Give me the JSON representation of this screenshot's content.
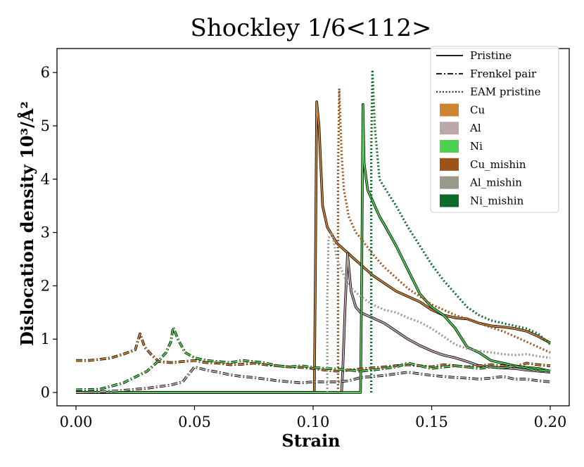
{
  "chart_data": {
    "type": "line",
    "title": "Shockley  1/6<112>",
    "xlabel": "Strain",
    "ylabel": "Dislocation density 10³/Å²",
    "xlim": [
      -0.008,
      0.208
    ],
    "ylim": [
      -0.25,
      6.45
    ],
    "xticks": [
      0.0,
      0.05,
      0.1,
      0.15,
      0.2
    ],
    "xtick_labels": [
      "0.00",
      "0.05",
      "0.10",
      "0.15",
      "0.20"
    ],
    "yticks": [
      0,
      1,
      2,
      3,
      4,
      5,
      6
    ],
    "ytick_labels": [
      "0",
      "1",
      "2",
      "3",
      "4",
      "5",
      "6"
    ],
    "legend_position": "top-right",
    "legend": [
      {
        "label": "Pristine",
        "kind": "line",
        "dash": "solid"
      },
      {
        "label": "Frenkel pair",
        "kind": "line",
        "dash": "dashdot"
      },
      {
        "label": "EAM pristine",
        "kind": "line",
        "dash": "dotted"
      },
      {
        "label": "Cu",
        "kind": "patch",
        "color": "#CD8534"
      },
      {
        "label": "Al",
        "kind": "patch",
        "color": "#BCA8AA"
      },
      {
        "label": "Ni",
        "kind": "patch",
        "color": "#4ED14E"
      },
      {
        "label": "Cu_mishin",
        "kind": "patch",
        "color": "#9B531A"
      },
      {
        "label": "Al_mishin",
        "kind": "patch",
        "color": "#9A9A8A"
      },
      {
        "label": "Ni_mishin",
        "kind": "patch",
        "color": "#0D6A28"
      }
    ],
    "series": [
      {
        "name": "Cu Pristine",
        "color": "#CD8534",
        "dash": "solid",
        "outline": true,
        "points": [
          [
            0,
            0
          ],
          [
            0.1,
            0
          ],
          [
            0.1005,
            0
          ],
          [
            0.101,
            2.5
          ],
          [
            0.1015,
            5.45
          ],
          [
            0.1025,
            5.0
          ],
          [
            0.104,
            3.5
          ],
          [
            0.106,
            3.1
          ],
          [
            0.108,
            2.95
          ],
          [
            0.11,
            2.8
          ],
          [
            0.115,
            2.6
          ],
          [
            0.12,
            2.4
          ],
          [
            0.125,
            2.2
          ],
          [
            0.13,
            2.05
          ],
          [
            0.135,
            1.9
          ],
          [
            0.14,
            1.8
          ],
          [
            0.145,
            1.7
          ],
          [
            0.15,
            1.55
          ],
          [
            0.155,
            1.45
          ],
          [
            0.16,
            1.4
          ],
          [
            0.165,
            1.38
          ],
          [
            0.17,
            1.3
          ],
          [
            0.175,
            1.25
          ],
          [
            0.18,
            1.23
          ],
          [
            0.185,
            1.2
          ],
          [
            0.19,
            1.15
          ],
          [
            0.195,
            1.05
          ],
          [
            0.2,
            0.93
          ]
        ]
      },
      {
        "name": "Al Pristine",
        "color": "#BCA8AA",
        "dash": "solid",
        "outline": true,
        "points": [
          [
            0,
            0
          ],
          [
            0.112,
            0
          ],
          [
            0.1125,
            0.4
          ],
          [
            0.1135,
            1.6
          ],
          [
            0.1145,
            2.6
          ],
          [
            0.116,
            1.9
          ],
          [
            0.118,
            1.6
          ],
          [
            0.12,
            1.5
          ],
          [
            0.125,
            1.4
          ],
          [
            0.13,
            1.3
          ],
          [
            0.135,
            1.15
          ],
          [
            0.14,
            1.0
          ],
          [
            0.145,
            0.88
          ],
          [
            0.15,
            0.78
          ],
          [
            0.155,
            0.7
          ],
          [
            0.16,
            0.65
          ],
          [
            0.165,
            0.58
          ],
          [
            0.17,
            0.5
          ],
          [
            0.175,
            0.48
          ],
          [
            0.18,
            0.46
          ],
          [
            0.185,
            0.45
          ],
          [
            0.19,
            0.42
          ],
          [
            0.195,
            0.4
          ],
          [
            0.2,
            0.38
          ]
        ]
      },
      {
        "name": "Ni Pristine",
        "color": "#4ED14E",
        "dash": "solid",
        "outline": true,
        "points": [
          [
            0,
            0
          ],
          [
            0.12,
            0
          ],
          [
            0.1205,
            2.2
          ],
          [
            0.121,
            5.4
          ],
          [
            0.1215,
            4.3
          ],
          [
            0.123,
            3.8
          ],
          [
            0.125,
            3.6
          ],
          [
            0.128,
            3.3
          ],
          [
            0.13,
            3.15
          ],
          [
            0.135,
            2.75
          ],
          [
            0.14,
            2.3
          ],
          [
            0.145,
            1.85
          ],
          [
            0.15,
            1.6
          ],
          [
            0.155,
            1.45
          ],
          [
            0.16,
            1.2
          ],
          [
            0.165,
            0.85
          ],
          [
            0.17,
            0.75
          ],
          [
            0.175,
            0.6
          ],
          [
            0.18,
            0.55
          ],
          [
            0.185,
            0.5
          ],
          [
            0.19,
            0.47
          ],
          [
            0.195,
            0.45
          ],
          [
            0.2,
            0.4
          ]
        ]
      },
      {
        "name": "Cu Frenkel pair",
        "color": "#CD8534",
        "dash": "dashdot",
        "outline": true,
        "points": [
          [
            0,
            0.6
          ],
          [
            0.005,
            0.6
          ],
          [
            0.01,
            0.62
          ],
          [
            0.015,
            0.65
          ],
          [
            0.02,
            0.72
          ],
          [
            0.025,
            0.8
          ],
          [
            0.027,
            1.1
          ],
          [
            0.029,
            0.85
          ],
          [
            0.032,
            0.7
          ],
          [
            0.035,
            0.58
          ],
          [
            0.04,
            0.56
          ],
          [
            0.045,
            0.58
          ],
          [
            0.05,
            0.6
          ],
          [
            0.055,
            0.56
          ],
          [
            0.06,
            0.55
          ],
          [
            0.065,
            0.52
          ],
          [
            0.07,
            0.53
          ],
          [
            0.075,
            0.55
          ],
          [
            0.08,
            0.52
          ],
          [
            0.085,
            0.5
          ],
          [
            0.09,
            0.48
          ],
          [
            0.095,
            0.47
          ],
          [
            0.1,
            0.45
          ],
          [
            0.105,
            0.42
          ],
          [
            0.11,
            0.4
          ],
          [
            0.115,
            0.42
          ],
          [
            0.12,
            0.44
          ],
          [
            0.125,
            0.46
          ],
          [
            0.13,
            0.48
          ],
          [
            0.135,
            0.5
          ],
          [
            0.14,
            0.52
          ],
          [
            0.145,
            0.5
          ],
          [
            0.15,
            0.48
          ],
          [
            0.155,
            0.52
          ],
          [
            0.16,
            0.5
          ],
          [
            0.165,
            0.48
          ],
          [
            0.17,
            0.5
          ],
          [
            0.175,
            0.52
          ],
          [
            0.18,
            0.5
          ],
          [
            0.185,
            0.48
          ],
          [
            0.19,
            0.55
          ],
          [
            0.195,
            0.52
          ],
          [
            0.2,
            0.5
          ]
        ]
      },
      {
        "name": "Al Frenkel pair",
        "color": "#BCA8AA",
        "dash": "dashdot",
        "outline": true,
        "points": [
          [
            0,
            0
          ],
          [
            0.01,
            0.01
          ],
          [
            0.02,
            0.04
          ],
          [
            0.03,
            0.08
          ],
          [
            0.04,
            0.14
          ],
          [
            0.045,
            0.2
          ],
          [
            0.05,
            0.48
          ],
          [
            0.055,
            0.42
          ],
          [
            0.06,
            0.38
          ],
          [
            0.065,
            0.33
          ],
          [
            0.07,
            0.3
          ],
          [
            0.075,
            0.28
          ],
          [
            0.08,
            0.25
          ],
          [
            0.085,
            0.22
          ],
          [
            0.09,
            0.2
          ],
          [
            0.095,
            0.18
          ],
          [
            0.1,
            0.2
          ],
          [
            0.105,
            0.2
          ],
          [
            0.11,
            0.2
          ],
          [
            0.115,
            0.22
          ],
          [
            0.12,
            0.28
          ],
          [
            0.125,
            0.3
          ],
          [
            0.13,
            0.32
          ],
          [
            0.135,
            0.35
          ],
          [
            0.14,
            0.38
          ],
          [
            0.145,
            0.35
          ],
          [
            0.15,
            0.32
          ],
          [
            0.155,
            0.3
          ],
          [
            0.16,
            0.28
          ],
          [
            0.165,
            0.27
          ],
          [
            0.17,
            0.25
          ],
          [
            0.175,
            0.27
          ],
          [
            0.18,
            0.3
          ],
          [
            0.185,
            0.25
          ],
          [
            0.19,
            0.25
          ],
          [
            0.195,
            0.22
          ],
          [
            0.2,
            0.2
          ]
        ]
      },
      {
        "name": "Ni Frenkel pair",
        "color": "#4ED14E",
        "dash": "dashdot",
        "outline": true,
        "points": [
          [
            0,
            0.05
          ],
          [
            0.01,
            0.06
          ],
          [
            0.02,
            0.18
          ],
          [
            0.03,
            0.4
          ],
          [
            0.035,
            0.6
          ],
          [
            0.038,
            0.75
          ],
          [
            0.04,
            0.95
          ],
          [
            0.041,
            1.22
          ],
          [
            0.043,
            1.0
          ],
          [
            0.046,
            0.75
          ],
          [
            0.05,
            0.65
          ],
          [
            0.055,
            0.6
          ],
          [
            0.06,
            0.58
          ],
          [
            0.065,
            0.56
          ],
          [
            0.07,
            0.6
          ],
          [
            0.075,
            0.58
          ],
          [
            0.08,
            0.55
          ],
          [
            0.085,
            0.5
          ],
          [
            0.09,
            0.48
          ],
          [
            0.095,
            0.5
          ],
          [
            0.1,
            0.47
          ],
          [
            0.105,
            0.45
          ],
          [
            0.11,
            0.44
          ],
          [
            0.115,
            0.42
          ],
          [
            0.12,
            0.4
          ],
          [
            0.125,
            0.42
          ],
          [
            0.13,
            0.45
          ],
          [
            0.135,
            0.48
          ],
          [
            0.14,
            0.55
          ],
          [
            0.145,
            0.5
          ],
          [
            0.15,
            0.45
          ],
          [
            0.155,
            0.48
          ],
          [
            0.16,
            0.5
          ],
          [
            0.165,
            0.48
          ],
          [
            0.17,
            0.45
          ],
          [
            0.175,
            0.48
          ],
          [
            0.18,
            0.46
          ],
          [
            0.185,
            0.5
          ],
          [
            0.19,
            0.45
          ],
          [
            0.195,
            0.42
          ],
          [
            0.2,
            0.4
          ]
        ]
      },
      {
        "name": "Cu_mishin EAM pristine",
        "color": "#9B531A",
        "dash": "dotted",
        "outline": false,
        "points": [
          [
            0.1105,
            0
          ],
          [
            0.1105,
            4.0
          ],
          [
            0.111,
            5.7
          ],
          [
            0.112,
            4.5
          ],
          [
            0.113,
            3.8
          ],
          [
            0.115,
            3.3
          ],
          [
            0.118,
            3.0
          ],
          [
            0.12,
            2.9
          ],
          [
            0.125,
            2.6
          ],
          [
            0.13,
            2.35
          ],
          [
            0.135,
            2.15
          ],
          [
            0.14,
            1.95
          ],
          [
            0.145,
            1.8
          ],
          [
            0.15,
            1.65
          ],
          [
            0.155,
            1.55
          ],
          [
            0.16,
            1.45
          ],
          [
            0.165,
            1.38
          ],
          [
            0.17,
            1.3
          ],
          [
            0.175,
            1.22
          ],
          [
            0.18,
            1.15
          ],
          [
            0.185,
            1.05
          ],
          [
            0.19,
            0.95
          ],
          [
            0.195,
            0.85
          ],
          [
            0.2,
            0.75
          ]
        ]
      },
      {
        "name": "Al_mishin EAM pristine",
        "color": "#9A9A8A",
        "dash": "dotted",
        "outline": false,
        "points": [
          [
            0.106,
            0
          ],
          [
            0.106,
            1.8
          ],
          [
            0.1065,
            2.9
          ],
          [
            0.108,
            3.0
          ],
          [
            0.11,
            2.5
          ],
          [
            0.112,
            2.3
          ],
          [
            0.115,
            2.0
          ],
          [
            0.12,
            1.8
          ],
          [
            0.125,
            1.65
          ],
          [
            0.13,
            1.55
          ],
          [
            0.135,
            1.5
          ],
          [
            0.14,
            1.4
          ],
          [
            0.145,
            1.32
          ],
          [
            0.15,
            1.2
          ],
          [
            0.155,
            1.05
          ],
          [
            0.16,
            0.9
          ],
          [
            0.165,
            0.82
          ],
          [
            0.17,
            0.78
          ],
          [
            0.175,
            0.75
          ],
          [
            0.18,
            0.72
          ],
          [
            0.185,
            0.7
          ],
          [
            0.19,
            0.72
          ],
          [
            0.195,
            0.68
          ],
          [
            0.2,
            0.65
          ]
        ]
      },
      {
        "name": "Ni_mishin EAM pristine",
        "color": "#0D6A28",
        "dash": "dotted",
        "outline": false,
        "points": [
          [
            0.1245,
            0
          ],
          [
            0.1245,
            4.5
          ],
          [
            0.125,
            6.05
          ],
          [
            0.126,
            5.0
          ],
          [
            0.128,
            4.0
          ],
          [
            0.13,
            3.85
          ],
          [
            0.135,
            3.5
          ],
          [
            0.14,
            3.1
          ],
          [
            0.145,
            2.75
          ],
          [
            0.15,
            2.4
          ],
          [
            0.155,
            2.1
          ],
          [
            0.16,
            1.85
          ],
          [
            0.165,
            1.6
          ],
          [
            0.17,
            1.45
          ],
          [
            0.175,
            1.35
          ],
          [
            0.18,
            1.3
          ],
          [
            0.185,
            1.25
          ],
          [
            0.19,
            1.2
          ],
          [
            0.195,
            1.1
          ],
          [
            0.2,
            0.9
          ]
        ]
      }
    ]
  }
}
